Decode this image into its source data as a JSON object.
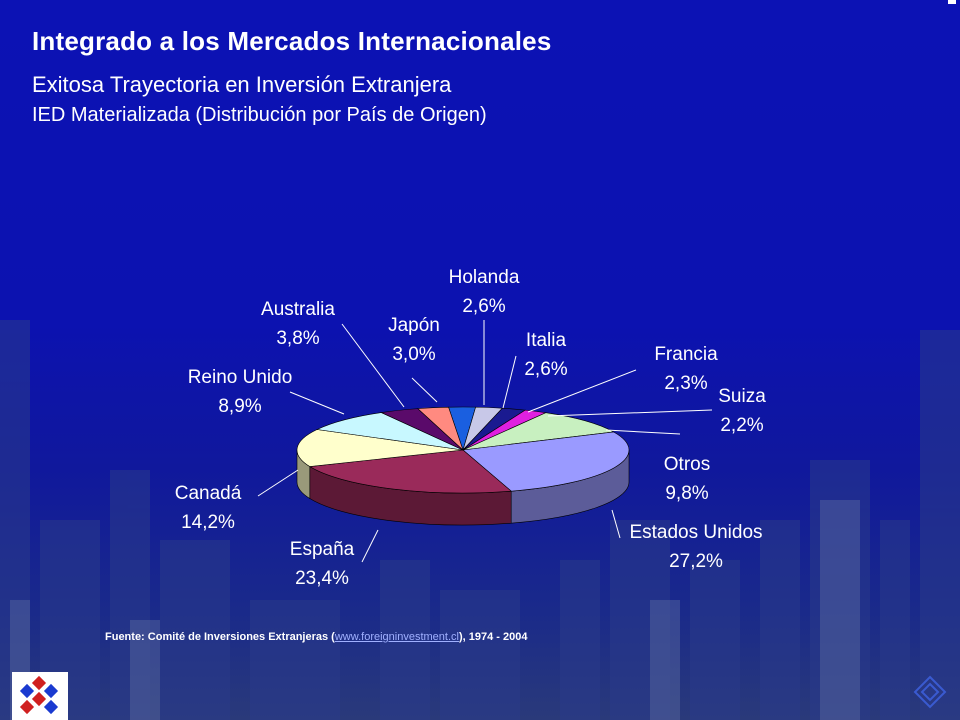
{
  "slide": {
    "title": "Integrado a los Mercados Internacionales",
    "subtitle": "Exitosa Trayectoria en Inversión Extranjera",
    "subtitle2": "IED Materializada (Distribución por País de Origen)"
  },
  "source": {
    "prefix": "Fuente: Comité de Inversiones Extranjeras (",
    "link": "www.foreigninvestment.cl",
    "suffix": "), 1974 - 2004"
  },
  "chart_data": {
    "type": "pie",
    "title": "",
    "slices": [
      {
        "label": "Holanda",
        "value_label": "2,6%",
        "value": 2.6,
        "color": "#1a5fe0"
      },
      {
        "label": "Italia",
        "value_label": "2,6%",
        "value": 2.6,
        "color": "#c8c8e8"
      },
      {
        "label": "Francia",
        "value_label": "2,3%",
        "value": 2.3,
        "color": "#1a1a90"
      },
      {
        "label": "Suiza",
        "value_label": "2,2%",
        "value": 2.2,
        "color": "#e020e0"
      },
      {
        "label": "Otros",
        "value_label": "9,8%",
        "value": 9.8,
        "color": "#c8f0c0"
      },
      {
        "label": "Estados Unidos",
        "value_label": "27,2%",
        "value": 27.2,
        "color": "#9a9aff"
      },
      {
        "label": "España",
        "value_label": "23,4%",
        "value": 23.4,
        "color": "#9a2a5a"
      },
      {
        "label": "Canadá",
        "value_label": "14,2%",
        "value": 14.2,
        "color": "#ffffcc"
      },
      {
        "label": "Reino Unido",
        "value_label": "8,9%",
        "value": 8.9,
        "color": "#c8f8ff"
      },
      {
        "label": "Australia",
        "value_label": "3,8%",
        "value": 3.8,
        "color": "#5a0a6a"
      },
      {
        "label": "Japón",
        "value_label": "3,0%",
        "value": 3.0,
        "color": "#ff8a80"
      }
    ]
  }
}
